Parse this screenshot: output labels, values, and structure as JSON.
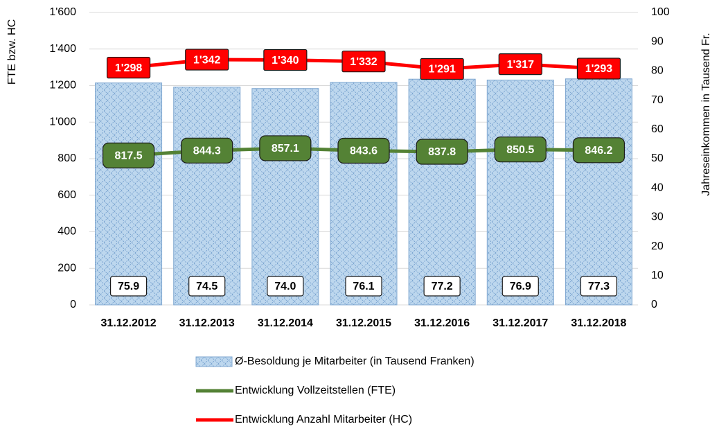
{
  "chart_data": {
    "type": "combo",
    "y_label": "FTE bzw. HC",
    "y2_label": "Jahreseinkommen in Tausend Fr.",
    "categories": [
      "31.12.2012",
      "31.12.2013",
      "31.12.2014",
      "31.12.2015",
      "31.12.2016",
      "31.12.2017",
      "31.12.2018"
    ],
    "ylim": [
      0,
      1600
    ],
    "yticks": [
      0,
      200,
      400,
      600,
      800,
      {
        "value": 1000,
        "label": "1'000"
      },
      {
        "value": 1200,
        "label": "1'200"
      },
      {
        "value": 1400,
        "label": "1'400"
      },
      {
        "value": 1600,
        "label": "1'600"
      }
    ],
    "y2lim": [
      0,
      100
    ],
    "y2ticks": [
      0,
      10,
      20,
      30,
      40,
      50,
      60,
      70,
      80,
      90,
      100
    ],
    "grid": true,
    "legend": "bottom",
    "series": [
      {
        "name": "Ø-Besoldung je Mitarbeiter (in Tausend Franken)",
        "type": "bar",
        "axis": "y2",
        "color": "#bdd7ee",
        "values": [
          75.9,
          74.5,
          74.0,
          76.1,
          77.2,
          76.9,
          77.3
        ],
        "value_labels": [
          "75.9",
          "74.5",
          "74.0",
          "76.1",
          "77.2",
          "76.9",
          "77.3"
        ]
      },
      {
        "name": "Entwicklung Vollzeitstellen (FTE)",
        "type": "line",
        "color": "#548235",
        "values": [
          817.5,
          844.3,
          857.1,
          843.6,
          837.8,
          850.5,
          846.2
        ]
      },
      {
        "name": "Entwicklung Anzahl Mitarbeiter (HC)",
        "type": "line",
        "color": "#ff0000",
        "values": [
          1298,
          1342,
          1340,
          1332,
          1291,
          1317,
          1293
        ],
        "value_labels": [
          "1'298",
          "1'342",
          "1'340",
          "1'332",
          "1'291",
          "1'317",
          "1'293"
        ]
      }
    ]
  }
}
